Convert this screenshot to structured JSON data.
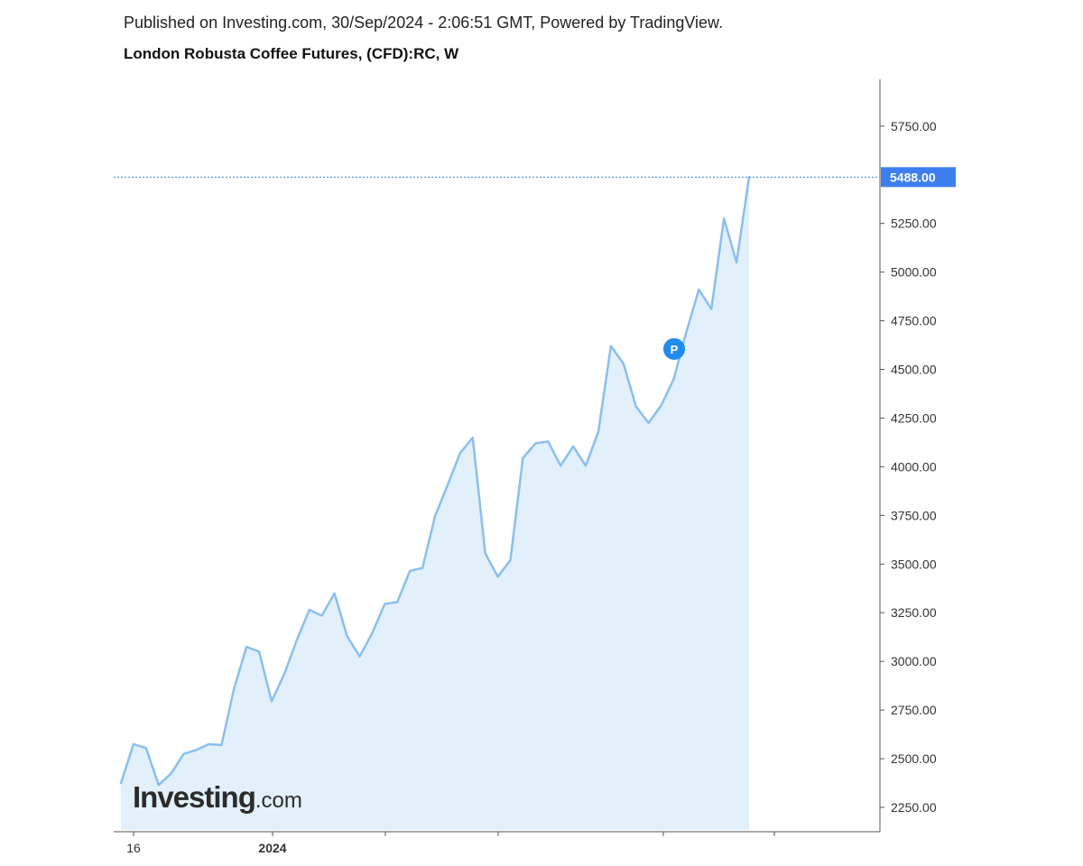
{
  "header": {
    "published": "Published on Investing.com, 30/Sep/2024 - 2:06:51 GMT, Powered by TradingView.",
    "title": "London Robusta Coffee Futures, (CFD):RC, W"
  },
  "brand": {
    "name": "Investing",
    "suffix": ".com"
  },
  "chart_data": {
    "type": "area",
    "interval": "W",
    "ylim": [
      2125,
      5990
    ],
    "y_ticks": [
      2250,
      2500,
      2750,
      3000,
      3250,
      3500,
      3750,
      4000,
      4250,
      4500,
      4750,
      5000,
      5250,
      5750
    ],
    "x_tick_labels": [
      "16",
      "2024",
      "",
      "",
      "",
      ""
    ],
    "last_price": "5488.00",
    "marker": {
      "label": "P",
      "value": 4605
    },
    "values": [
      2375,
      2575,
      2555,
      2365,
      2425,
      2525,
      2545,
      2575,
      2570,
      2860,
      3075,
      3050,
      2795,
      2935,
      3110,
      3265,
      3235,
      3350,
      3130,
      3025,
      3145,
      3295,
      3305,
      3465,
      3480,
      3745,
      3905,
      4070,
      4150,
      3555,
      3435,
      3520,
      4045,
      4120,
      4130,
      4005,
      4105,
      4005,
      4180,
      4620,
      4530,
      4310,
      4225,
      4315,
      4450,
      4690,
      4910,
      4810,
      5275,
      5050,
      5488
    ],
    "colors": {
      "line": "#89bff0",
      "area": "#e1f0fa",
      "price_tag": "#3d7ff0",
      "marker": "#1f8ded"
    },
    "grid": false,
    "legend": "none"
  }
}
